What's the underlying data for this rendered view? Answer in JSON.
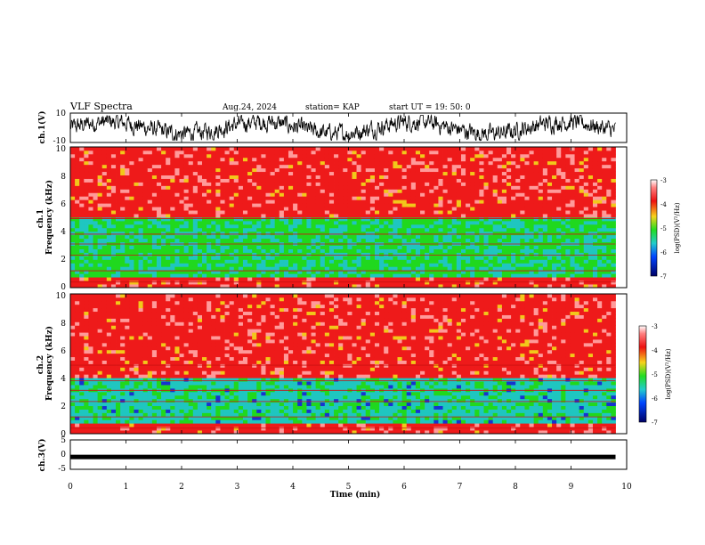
{
  "header": {
    "title": "VLF Spectra",
    "date": "Aug.24, 2024",
    "station": "station= KAP",
    "start": "start  UT =   19: 50: 0"
  },
  "chart_data": [
    {
      "id": "ch1_waveform",
      "type": "line",
      "ylabel": "ch.1(V)",
      "ylim": [
        -10,
        10
      ],
      "yticks": [
        "10",
        "-10"
      ],
      "xlim": [
        0,
        10
      ],
      "series_description": "noisy waveform centered near 0 V",
      "data_extent_min": 9.8
    },
    {
      "id": "ch1_spectrogram",
      "type": "heatmap",
      "ylabel": "ch.1\nFrequency (kHz)",
      "ylim": [
        0,
        10
      ],
      "yticks": [
        "0",
        "2",
        "4",
        "6",
        "8",
        "10"
      ],
      "xlim": [
        0,
        10
      ],
      "colorbar": {
        "label": "log(PSD)(V²/Hz)",
        "range": [
          -7,
          -3
        ],
        "ticks": [
          "-3",
          "-4",
          "-5",
          "-6",
          "-7"
        ]
      },
      "bands_kHz": [
        {
          "from": 0,
          "to": 5,
          "level": -5.5
        },
        {
          "from": 5,
          "to": 10,
          "level": -3.8
        }
      ]
    },
    {
      "id": "ch2_spectrogram",
      "type": "heatmap",
      "ylabel": "ch.2\nFrequency (kHz)",
      "ylim": [
        0,
        10
      ],
      "yticks": [
        "0",
        "2",
        "4",
        "6",
        "8",
        "10"
      ],
      "xlim": [
        0,
        10
      ],
      "colorbar": {
        "label": "log(PSD)(V²/Hz)",
        "range": [
          -7,
          -3
        ],
        "ticks": [
          "-3",
          "-4",
          "-5",
          "-6",
          "-7"
        ]
      },
      "bands_kHz": [
        {
          "from": 0,
          "to": 4,
          "level": -5.8
        },
        {
          "from": 4,
          "to": 10,
          "level": -3.8
        }
      ]
    },
    {
      "id": "ch3_waveform",
      "type": "line",
      "ylabel": "ch.3(V)",
      "ylim": [
        -5,
        5
      ],
      "yticks": [
        "5",
        "0",
        "-5"
      ],
      "xlim": [
        0,
        10
      ],
      "level_V": -0.8,
      "data_extent_min": 9.8
    }
  ],
  "xaxis": {
    "label": "Time (min)",
    "ticks": [
      "0",
      "1",
      "2",
      "3",
      "4",
      "5",
      "6",
      "7",
      "8",
      "9",
      "10"
    ]
  },
  "colors": {
    "hot": "#ee2222",
    "mid": "#f0d020",
    "low": "#22dd22",
    "deep": "#22cccc",
    "cold": "#0000aa"
  }
}
